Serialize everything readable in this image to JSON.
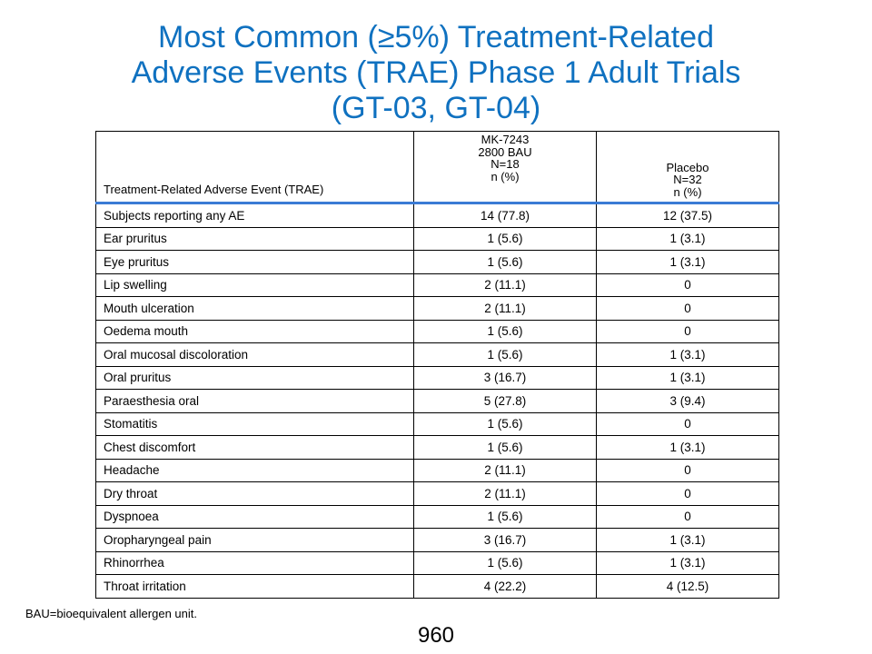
{
  "title": {
    "line1": "Most Common (≥5%) Treatment-Related",
    "line2": "Adverse Events (TRAE) Phase 1 Adult Trials",
    "line3": "(GT-03, GT-04)"
  },
  "table": {
    "header": {
      "event": "Treatment-Related  Adverse Event (TRAE)",
      "active": {
        "line1": "MK-7243",
        "line2": "2800 BAU",
        "line3": "N=18",
        "line4": "n (%)"
      },
      "placebo": {
        "line1": "Placebo",
        "line2": "N=32",
        "line3": "n (%)"
      }
    },
    "rows": [
      {
        "event": "Subjects reporting any AE",
        "active": "14 (77.8)",
        "placebo": "12 (37.5)"
      },
      {
        "event": "Ear pruritus",
        "active": "1 (5.6)",
        "placebo": "1 (3.1)"
      },
      {
        "event": "Eye pruritus",
        "active": "1 (5.6)",
        "placebo": "1 (3.1)"
      },
      {
        "event": "Lip swelling",
        "active": "2 (11.1)",
        "placebo": "0"
      },
      {
        "event": "Mouth ulceration",
        "active": "2 (11.1)",
        "placebo": "0"
      },
      {
        "event": "Oedema mouth",
        "active": "1 (5.6)",
        "placebo": "0"
      },
      {
        "event": "Oral mucosal discoloration",
        "active": "1 (5.6)",
        "placebo": "1 (3.1)"
      },
      {
        "event": "Oral pruritus",
        "active": "3 (16.7)",
        "placebo": "1 (3.1)"
      },
      {
        "event": "Paraesthesia oral",
        "active": "5 (27.8)",
        "placebo": "3 (9.4)"
      },
      {
        "event": "Stomatitis",
        "active": "1 (5.6)",
        "placebo": "0"
      },
      {
        "event": "Chest discomfort",
        "active": "1 (5.6)",
        "placebo": "1 (3.1)"
      },
      {
        "event": "Headache",
        "active": "2 (11.1)",
        "placebo": "0"
      },
      {
        "event": "Dry throat",
        "active": "2 (11.1)",
        "placebo": "0"
      },
      {
        "event": "Dyspnoea",
        "active": "1 (5.6)",
        "placebo": "0"
      },
      {
        "event": "Oropharyngeal  pain",
        "active": "3 (16.7)",
        "placebo": "1 (3.1)"
      },
      {
        "event": "Rhinorrhea",
        "active": "1 (5.6)",
        "placebo": "1 (3.1)"
      },
      {
        "event": "Throat irritation",
        "active": "4 (22.2)",
        "placebo": "4 (12.5)"
      }
    ]
  },
  "footnote": "BAU=bioequivalent allergen unit.",
  "slide_number": "960",
  "colors": {
    "title": "#0f71c0",
    "header_rule": "#3a7bd5"
  }
}
